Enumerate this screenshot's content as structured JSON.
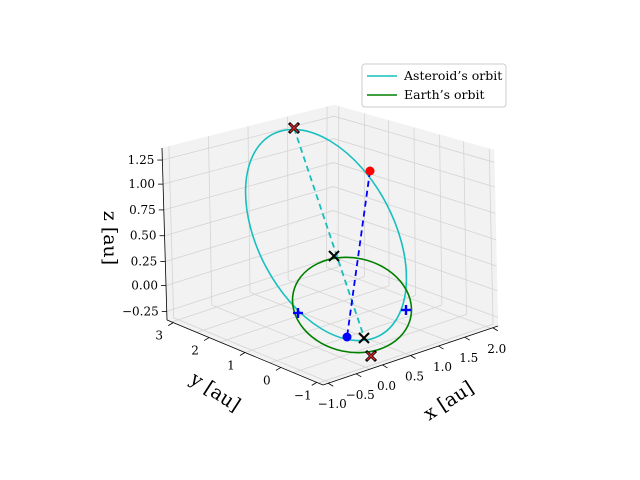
{
  "chart_data": {
    "type": "line3d",
    "title": "",
    "axes": {
      "x": {
        "label": "x [au]",
        "ticks": [
          "−1.0",
          "−0.5",
          "0.0",
          "0.5",
          "1.0",
          "1.5",
          "2.0"
        ],
        "range": [
          -1.1,
          2.2
        ]
      },
      "y": {
        "label": "y [au]",
        "ticks": [
          "−1",
          "0",
          "1",
          "2",
          "3"
        ],
        "range": [
          -1.2,
          3.4
        ]
      },
      "z": {
        "label": "z [au]",
        "ticks": [
          "−0.25",
          "0.00",
          "0.25",
          "0.50",
          "0.75",
          "1.00",
          "1.25"
        ],
        "range": [
          -0.35,
          1.35
        ]
      }
    },
    "grid": true,
    "legend": {
      "placement": "top-right",
      "entries": [
        {
          "label": "Asteroid’s orbit",
          "color": "#17bfbf"
        },
        {
          "label": "Earth’s orbit",
          "color": "#008000"
        }
      ]
    },
    "series": [
      {
        "name": "Asteroid’s orbit",
        "kind": "ellipse",
        "color": "#17bfbf"
      },
      {
        "name": "Earth’s orbit",
        "kind": "ellipse",
        "color": "#008000"
      }
    ],
    "markers": [
      {
        "name": "asteroid-red-x-top",
        "shape": "x-red",
        "color": "#d62728"
      },
      {
        "name": "asteroid-red-dot",
        "shape": "dot",
        "color": "#ff0000"
      },
      {
        "name": "black-x-center",
        "shape": "x-black",
        "color": "#000000"
      },
      {
        "name": "black-x-lower",
        "shape": "x-black",
        "color": "#000000"
      },
      {
        "name": "earth-red-x-bottom",
        "shape": "x-red",
        "color": "#d62728"
      },
      {
        "name": "blue-dot",
        "shape": "dot",
        "color": "#0000ff"
      },
      {
        "name": "blue-plus-left",
        "shape": "plus",
        "color": "#0000ff"
      },
      {
        "name": "blue-plus-right",
        "shape": "plus",
        "color": "#0000ff"
      }
    ],
    "dashed_lines": [
      {
        "name": "cyan-dashed-link",
        "color": "#17bfbf"
      },
      {
        "name": "blue-dashed-link",
        "color": "#0000ff"
      }
    ]
  }
}
